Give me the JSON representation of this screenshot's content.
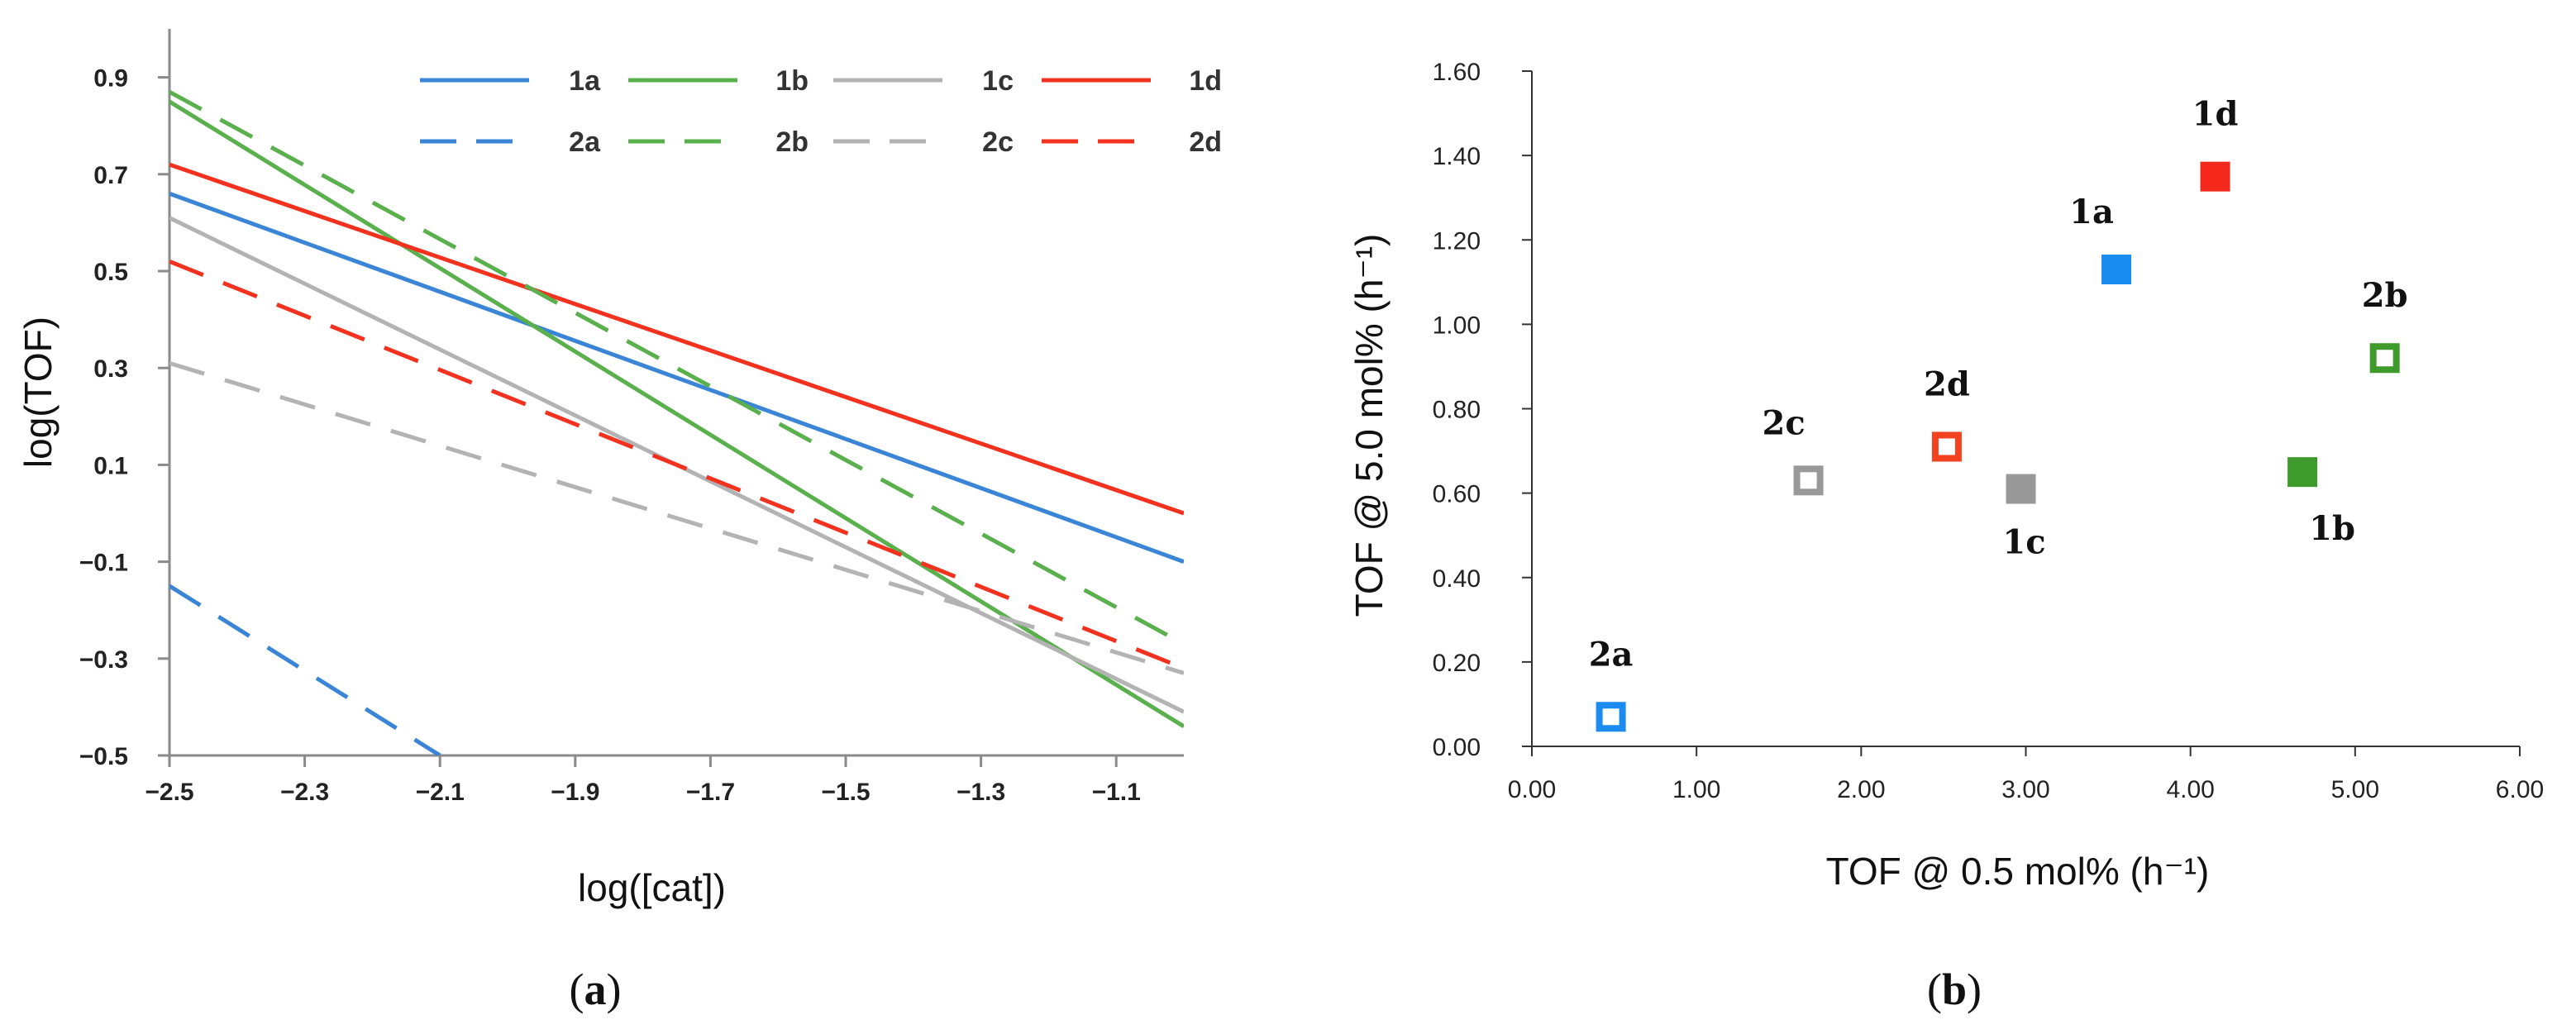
{
  "chart_data": [
    {
      "panel": "a",
      "type": "line",
      "xlabel": "log([cat])",
      "ylabel": "log(TOF)",
      "xlim": [
        -2.5,
        -1.0
      ],
      "ylim": [
        -0.5,
        1.0
      ],
      "xticks": [
        -2.5,
        -2.3,
        -2.1,
        -1.9,
        -1.7,
        -1.5,
        -1.3,
        -1.1
      ],
      "xtick_labels": [
        "−2.5",
        "−2.3",
        "−2.1",
        "−1.9",
        "−1.7",
        "−1.5",
        "−1.3",
        "−1.1"
      ],
      "yticks": [
        -0.5,
        -0.3,
        -0.1,
        0.1,
        0.3,
        0.5,
        0.7,
        0.9
      ],
      "ytick_labels": [
        "−0.5",
        "−0.3",
        "−0.1",
        "0.1",
        "0.3",
        "0.5",
        "0.7",
        "0.9"
      ],
      "legend_position": "top-right",
      "series": [
        {
          "name": "1a",
          "color": "#3a85d6",
          "dash": "solid",
          "x": [
            -2.5,
            -1.0
          ],
          "y": [
            0.66,
            -0.1
          ]
        },
        {
          "name": "1b",
          "color": "#5ab04c",
          "dash": "solid",
          "x": [
            -2.5,
            -1.0
          ],
          "y": [
            0.85,
            -0.44
          ]
        },
        {
          "name": "1c",
          "color": "#b3b3b3",
          "dash": "solid",
          "x": [
            -2.5,
            -1.0
          ],
          "y": [
            0.61,
            -0.41
          ]
        },
        {
          "name": "1d",
          "color": "#f2311f",
          "dash": "solid",
          "x": [
            -2.5,
            -1.0
          ],
          "y": [
            0.72,
            0.0
          ]
        },
        {
          "name": "2a",
          "color": "#3a85d6",
          "dash": "dashed",
          "x": [
            -2.5,
            -2.1
          ],
          "y": [
            -0.15,
            -0.5
          ]
        },
        {
          "name": "2b",
          "color": "#5ab04c",
          "dash": "dashed",
          "x": [
            -2.5,
            -1.0
          ],
          "y": [
            0.87,
            -0.27
          ]
        },
        {
          "name": "2c",
          "color": "#b3b3b3",
          "dash": "dashed",
          "x": [
            -2.5,
            -1.0
          ],
          "y": [
            0.31,
            -0.33
          ]
        },
        {
          "name": "2d",
          "color": "#f2311f",
          "dash": "dashed",
          "x": [
            -2.5,
            -1.0
          ],
          "y": [
            0.52,
            -0.32
          ]
        }
      ],
      "caption": "a"
    },
    {
      "panel": "b",
      "type": "scatter",
      "xlabel": "TOF @ 0.5 mol% (h⁻¹)",
      "ylabel": "TOF @ 5.0 mol% (h⁻¹)",
      "xlim": [
        0,
        6
      ],
      "ylim": [
        0,
        1.6
      ],
      "xticks": [
        0,
        1,
        2,
        3,
        4,
        5,
        6
      ],
      "xtick_labels": [
        "0.00",
        "1.00",
        "2.00",
        "3.00",
        "4.00",
        "5.00",
        "6.00"
      ],
      "yticks": [
        0,
        0.2,
        0.4,
        0.6,
        0.8,
        1.0,
        1.2,
        1.4,
        1.6
      ],
      "ytick_labels": [
        "0.00",
        "0.20",
        "0.40",
        "0.60",
        "0.80",
        "1.00",
        "1.20",
        "1.40",
        "1.60"
      ],
      "points": [
        {
          "name": "1a",
          "x": 3.55,
          "y": 1.13,
          "color": "#1a8cf0",
          "filled": true,
          "label_pos": "above-left"
        },
        {
          "name": "1b",
          "x": 4.68,
          "y": 0.65,
          "color": "#3f9a2c",
          "filled": true,
          "label_pos": "below-right"
        },
        {
          "name": "1c",
          "x": 2.97,
          "y": 0.61,
          "color": "#999999",
          "filled": true,
          "label_pos": "below"
        },
        {
          "name": "1d",
          "x": 4.15,
          "y": 1.35,
          "color": "#f5291b",
          "filled": true,
          "label_pos": "above"
        },
        {
          "name": "2a",
          "x": 0.48,
          "y": 0.07,
          "color": "#1a8cf0",
          "filled": false,
          "label_pos": "above"
        },
        {
          "name": "2b",
          "x": 5.18,
          "y": 0.92,
          "color": "#3f9a2c",
          "filled": false,
          "label_pos": "above"
        },
        {
          "name": "2c",
          "x": 1.68,
          "y": 0.63,
          "color": "#999999",
          "filled": false,
          "label_pos": "above-left"
        },
        {
          "name": "2d",
          "x": 2.52,
          "y": 0.71,
          "color": "#f2421f",
          "filled": false,
          "label_pos": "above"
        }
      ],
      "caption": "b"
    }
  ]
}
